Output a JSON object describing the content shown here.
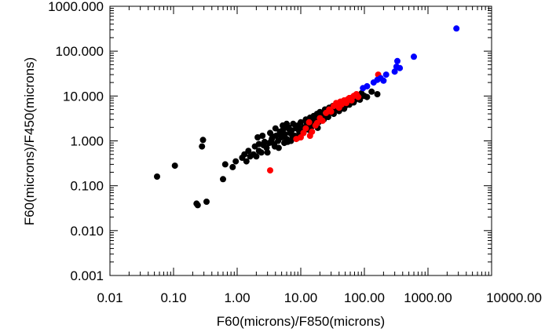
{
  "chart_data": {
    "type": "scatter",
    "xlabel": "F60(microns)/F850(microns)",
    "ylabel": "F60(microns)/F450(microns)",
    "x_scale": "log",
    "y_scale": "log",
    "xlim": [
      0.01,
      10000
    ],
    "ylim": [
      0.001,
      1000
    ],
    "x_ticks": [
      0.01,
      0.1,
      1,
      10,
      100,
      1000,
      10000
    ],
    "x_tick_labels": [
      "0.01",
      "0.10",
      "1.00",
      "10.00",
      "100.00",
      "1000.00",
      "10000.00"
    ],
    "y_ticks": [
      0.001,
      0.01,
      0.1,
      1,
      10,
      100,
      1000
    ],
    "y_tick_labels": [
      "0.001",
      "0.010",
      "0.100",
      "1.000",
      "10.000",
      "100.000",
      "1000.000"
    ],
    "grid": false,
    "legend": "none",
    "series": [
      {
        "color": "#000000",
        "points": [
          [
            0.055,
            0.16
          ],
          [
            0.105,
            0.28
          ],
          [
            0.23,
            0.04
          ],
          [
            0.24,
            0.037
          ],
          [
            0.33,
            0.044
          ],
          [
            0.28,
            0.75
          ],
          [
            0.29,
            1.05
          ],
          [
            0.6,
            0.14
          ],
          [
            0.65,
            0.3
          ],
          [
            0.85,
            0.26
          ],
          [
            0.95,
            0.35
          ],
          [
            1.2,
            0.42
          ],
          [
            1.4,
            0.35
          ],
          [
            1.6,
            0.45
          ],
          [
            1.8,
            0.5
          ],
          [
            2.0,
            0.45
          ],
          [
            2.2,
            0.6
          ],
          [
            2.4,
            0.55
          ],
          [
            2.6,
            0.8
          ],
          [
            2.9,
            0.7
          ],
          [
            3.2,
            0.9
          ],
          [
            3.5,
            1.1
          ],
          [
            3.8,
            0.85
          ],
          [
            4.1,
            1.3
          ],
          [
            4.4,
            1.0
          ],
          [
            4.7,
            1.6
          ],
          [
            5.0,
            1.2
          ],
          [
            5.3,
            1.8
          ],
          [
            5.6,
            1.4
          ],
          [
            6.0,
            1.1
          ],
          [
            6.4,
            2.0
          ],
          [
            6.8,
            1.5
          ],
          [
            7.2,
            1.7
          ],
          [
            7.6,
            2.4
          ],
          [
            8.0,
            1.3
          ],
          [
            8.5,
            1.9
          ],
          [
            9.0,
            2.2
          ],
          [
            9.5,
            1.6
          ],
          [
            10.0,
            2.6
          ],
          [
            11.0,
            2.0
          ],
          [
            12.0,
            3.0
          ],
          [
            13.0,
            2.4
          ],
          [
            14.0,
            3.3
          ],
          [
            15.0,
            2.1
          ],
          [
            16.0,
            3.6
          ],
          [
            17.0,
            2.8
          ],
          [
            18.0,
            4.0
          ],
          [
            19.0,
            3.1
          ],
          [
            20.0,
            4.4
          ],
          [
            22.0,
            3.5
          ],
          [
            24.0,
            5.0
          ],
          [
            26.0,
            3.9
          ],
          [
            28.0,
            5.5
          ],
          [
            30.0,
            4.3
          ],
          [
            32.0,
            6.0
          ],
          [
            35.0,
            5.0
          ],
          [
            38.0,
            6.6
          ],
          [
            42.0,
            5.4
          ],
          [
            45.0,
            7.4
          ],
          [
            50.0,
            6.0
          ],
          [
            55.0,
            8.2
          ],
          [
            60.0,
            7.0
          ],
          [
            65.0,
            9.3
          ],
          [
            70.0,
            8.0
          ],
          [
            75.0,
            10.5
          ],
          [
            80.0,
            9.0
          ],
          [
            90.0,
            11.5
          ],
          [
            100.0,
            10.0
          ],
          [
            110.0,
            9.5
          ],
          [
            130.0,
            12.5
          ],
          [
            160.0,
            11.0
          ],
          [
            3.0,
            0.55
          ],
          [
            2.2,
            0.85
          ],
          [
            4.5,
            0.7
          ],
          [
            5.5,
            0.9
          ],
          [
            7.0,
            1.0
          ],
          [
            9.0,
            1.3
          ],
          [
            6.0,
            2.4
          ],
          [
            4.0,
            1.9
          ],
          [
            3.3,
            1.5
          ],
          [
            11.0,
            1.5
          ],
          [
            13.0,
            1.8
          ],
          [
            16.0,
            2.3
          ],
          [
            19.0,
            2.6
          ],
          [
            23.0,
            3.0
          ],
          [
            27.0,
            3.4
          ],
          [
            33.0,
            4.0
          ],
          [
            40.0,
            4.6
          ],
          [
            48.0,
            5.2
          ],
          [
            58.0,
            6.4
          ],
          [
            68.0,
            7.2
          ],
          [
            85.0,
            8.3
          ],
          [
            1.5,
            0.6
          ],
          [
            1.9,
            0.75
          ],
          [
            2.7,
            0.95
          ],
          [
            3.6,
            1.25
          ],
          [
            4.9,
            1.5
          ],
          [
            6.6,
            1.8
          ],
          [
            8.4,
            2.1
          ],
          [
            10.5,
            1.8
          ],
          [
            12.5,
            2.5
          ],
          [
            15.5,
            2.9
          ],
          [
            21.0,
            3.6
          ],
          [
            25.0,
            4.4
          ],
          [
            31.0,
            5.0
          ],
          [
            37.0,
            5.6
          ],
          [
            44.0,
            6.3
          ],
          [
            52.0,
            7.6
          ],
          [
            62.0,
            8.6
          ],
          [
            72.0,
            9.8
          ],
          [
            2.1,
            1.2
          ],
          [
            1.3,
            0.5
          ],
          [
            5.2,
            2.2
          ],
          [
            8.8,
            1.15
          ],
          [
            14.5,
            1.6
          ],
          [
            18.5,
            1.95
          ],
          [
            7.4,
            1.25
          ],
          [
            3.9,
            0.75
          ],
          [
            2.5,
            1.3
          ],
          [
            6.2,
            0.95
          ]
        ]
      },
      {
        "color": "#ff0000",
        "points": [
          [
            3.3,
            0.22
          ],
          [
            8.5,
            1.1
          ],
          [
            10.0,
            1.2
          ],
          [
            11.0,
            1.5
          ],
          [
            12.0,
            1.9
          ],
          [
            13.5,
            2.6
          ],
          [
            15.0,
            1.6
          ],
          [
            17.0,
            2.2
          ],
          [
            20.0,
            3.2
          ],
          [
            22.0,
            2.8
          ],
          [
            25.0,
            4.2
          ],
          [
            28.0,
            5.0
          ],
          [
            30.0,
            4.5
          ],
          [
            33.0,
            6.0
          ],
          [
            36.0,
            7.0
          ],
          [
            40.0,
            5.5
          ],
          [
            44.0,
            6.5
          ],
          [
            48.0,
            8.0
          ],
          [
            52.0,
            7.0
          ],
          [
            58.0,
            9.0
          ],
          [
            63.0,
            8.0
          ],
          [
            68.0,
            10.0
          ],
          [
            75.0,
            11.0
          ],
          [
            80.0,
            9.5
          ],
          [
            165.0,
            30.0
          ],
          [
            14.0,
            1.3
          ],
          [
            18.0,
            2.5
          ],
          [
            38.0,
            6.2
          ],
          [
            55.0,
            8.5
          ],
          [
            42.0,
            7.5
          ]
        ]
      },
      {
        "color": "#0000ff",
        "points": [
          [
            95.0,
            15.0
          ],
          [
            110.0,
            16.5
          ],
          [
            140.0,
            20.0
          ],
          [
            160.0,
            23.0
          ],
          [
            180.0,
            25.0
          ],
          [
            200.0,
            22.0
          ],
          [
            220.0,
            30.0
          ],
          [
            300.0,
            35.0
          ],
          [
            320.0,
            45.0
          ],
          [
            360.0,
            42.0
          ],
          [
            330.0,
            60.0
          ],
          [
            600.0,
            75.0
          ],
          [
            2800.0,
            320.0
          ]
        ]
      }
    ]
  }
}
